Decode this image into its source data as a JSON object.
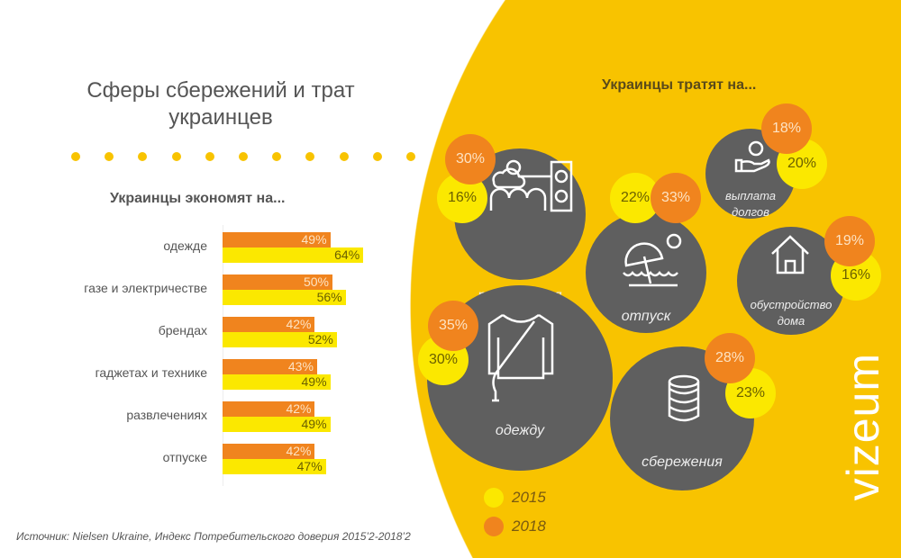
{
  "title": "Сферы сбережений и трат украинцев",
  "save_heading": "Украинцы экономят на...",
  "spend_heading": "Украинцы тратят на...",
  "colors": {
    "y2015": "#fbe800",
    "y2018": "#f0841e",
    "bg": "#f8c300",
    "bubble": "#5f5f5f"
  },
  "chart_data": [
    {
      "type": "bar",
      "title": "Украинцы экономят на...",
      "categories": [
        "одежде",
        "газе и электричестве",
        "брендах",
        "гаджетах и технике",
        "развлечениях",
        "отпуске"
      ],
      "series": [
        {
          "name": "2018",
          "values": [
            49,
            50,
            42,
            43,
            42,
            42
          ]
        },
        {
          "name": "2015",
          "values": [
            64,
            56,
            52,
            49,
            49,
            47
          ]
        }
      ],
      "xlim": [
        0,
        100
      ]
    },
    {
      "type": "bubble",
      "title": "Украинцы тратят на...",
      "categories": [
        "развлечения",
        "отпуск",
        "выплата долгов",
        "обустройство дома",
        "одежду",
        "сбережения"
      ],
      "series": [
        {
          "name": "2018",
          "values": [
            30,
            33,
            18,
            19,
            35,
            28
          ]
        },
        {
          "name": "2015",
          "values": [
            16,
            22,
            20,
            16,
            30,
            23
          ]
        }
      ]
    }
  ],
  "labels": {
    "v2018": [
      "30%",
      "33%",
      "18%",
      "19%",
      "35%",
      "28%"
    ],
    "v2015": [
      "16%",
      "22%",
      "20%",
      "16%",
      "30%",
      "23%"
    ],
    "bars2018": [
      "49%",
      "50%",
      "42%",
      "43%",
      "42%",
      "42%"
    ],
    "bars2015": [
      "64%",
      "56%",
      "52%",
      "49%",
      "49%",
      "47%"
    ]
  },
  "legend": [
    "2015",
    "2018"
  ],
  "source": "Источник: Nielsen Ukraine, Индекс Потребительского доверия 2015’2-2018’2",
  "logo": "vizeum"
}
